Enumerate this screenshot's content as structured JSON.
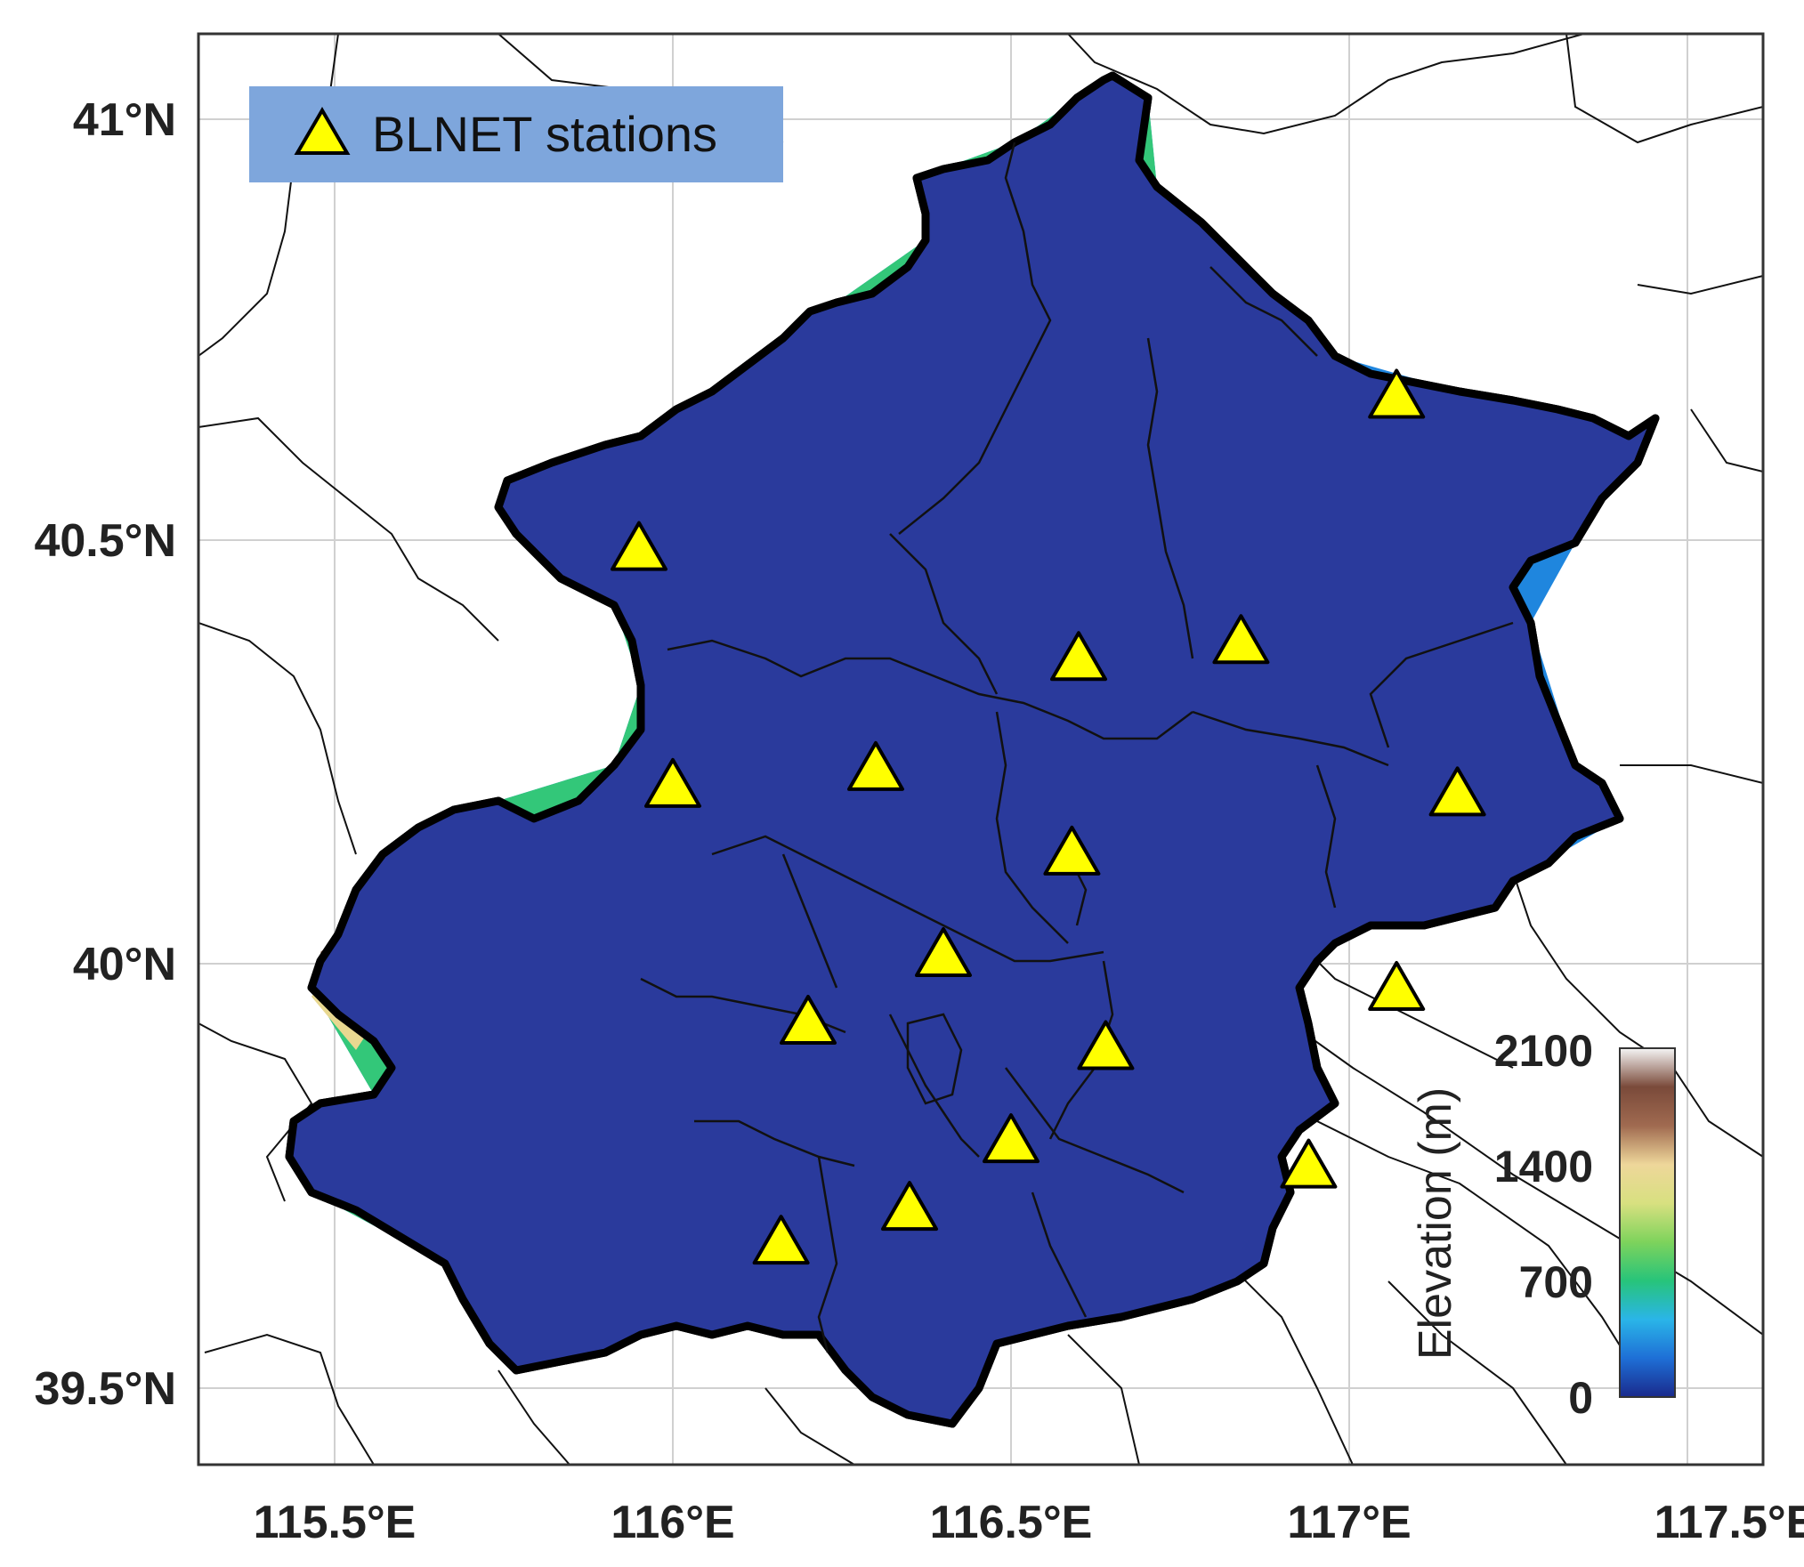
{
  "map": {
    "legend": {
      "label": "BLNET stations",
      "box_color": "#7ea6dc",
      "marker_color": "#ffff00"
    },
    "x_ticks": [
      "115.5°E",
      "116°E",
      "116.5°E",
      "117°E",
      "117.5°E"
    ],
    "y_ticks": [
      "41°N",
      "40.5°N",
      "40°N",
      "39.5°N"
    ],
    "colorbar": {
      "title": "Elevation (m)",
      "ticks": [
        "2100",
        "1400",
        "700",
        "0"
      ],
      "colors": [
        "#1a2a8c",
        "#1e6fd6",
        "#2ab5e8",
        "#27c47a",
        "#7ed35c",
        "#d8e080",
        "#eed79a",
        "#a06a50",
        "#7a4a3a",
        "#f5f5f5"
      ]
    },
    "region_colors": {
      "low": "#2b3a9a",
      "mid": "#2a8fe0",
      "high": "#3ccc70",
      "peak": "#e8d890",
      "summit": "#8a6050"
    },
    "stations": [
      {
        "lon": 117.07,
        "lat": 40.67
      },
      {
        "lon": 115.95,
        "lat": 40.49
      },
      {
        "lon": 116.6,
        "lat": 40.36
      },
      {
        "lon": 116.84,
        "lat": 40.38
      },
      {
        "lon": 116.0,
        "lat": 40.21
      },
      {
        "lon": 116.3,
        "lat": 40.23
      },
      {
        "lon": 117.16,
        "lat": 40.2
      },
      {
        "lon": 116.59,
        "lat": 40.13
      },
      {
        "lon": 116.4,
        "lat": 40.01
      },
      {
        "lon": 116.2,
        "lat": 39.93
      },
      {
        "lon": 117.07,
        "lat": 39.97
      },
      {
        "lon": 116.64,
        "lat": 39.9
      },
      {
        "lon": 116.5,
        "lat": 39.79
      },
      {
        "lon": 116.94,
        "lat": 39.76
      },
      {
        "lon": 116.35,
        "lat": 39.71
      },
      {
        "lon": 116.16,
        "lat": 39.67
      }
    ]
  }
}
